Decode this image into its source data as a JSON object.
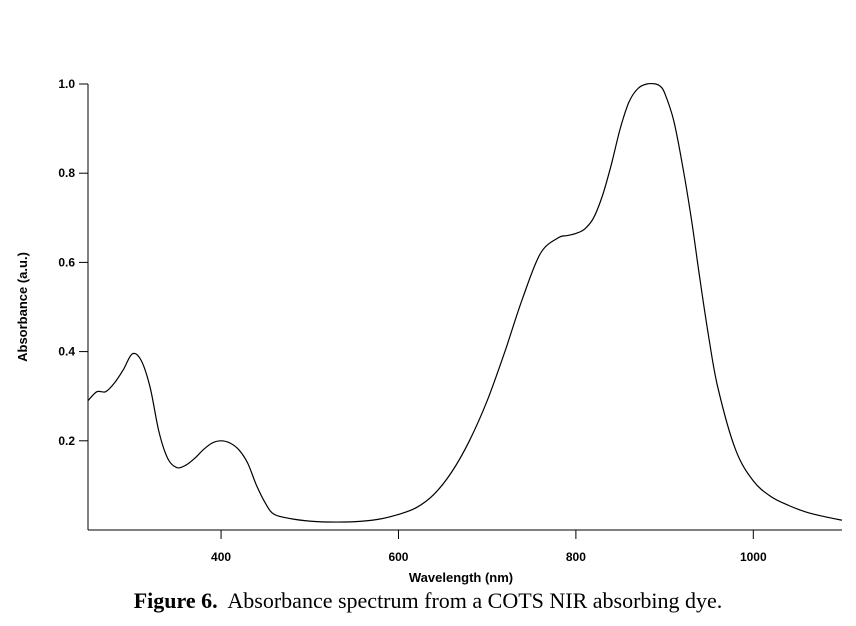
{
  "caption": {
    "label": "Figure 6.",
    "text": "Absorbance spectrum from a COTS NIR absorbing dye."
  },
  "chart_data": {
    "type": "line",
    "title": "",
    "xlabel": "Wavelength (nm)",
    "ylabel": "Absorbance (a.u.)",
    "xlim": [
      250,
      1100
    ],
    "ylim": [
      0,
      1.0
    ],
    "xticks": [
      400,
      600,
      800,
      1000
    ],
    "yticks": [
      0.2,
      0.4,
      0.6,
      0.8,
      1.0
    ],
    "xtick_labels": [
      "400",
      "600",
      "800",
      "1000"
    ],
    "ytick_labels": [
      "0.2",
      "0.4",
      "0.6",
      "0.8",
      "1.0"
    ],
    "grid": false,
    "legend": "none",
    "line_color": "#000000",
    "series": [
      {
        "x": [
          250,
          260,
          270,
          280,
          290,
          300,
          310,
          320,
          330,
          340,
          350,
          360,
          370,
          380,
          390,
          400,
          410,
          420,
          430,
          440,
          450,
          460,
          480,
          500,
          520,
          540,
          560,
          580,
          600,
          620,
          640,
          660,
          680,
          700,
          720,
          740,
          760,
          780,
          790,
          800,
          810,
          820,
          830,
          840,
          850,
          860,
          870,
          880,
          890,
          895,
          900,
          910,
          920,
          930,
          940,
          950,
          960,
          980,
          1000,
          1020,
          1040,
          1060,
          1080,
          1100
        ],
        "y": [
          0.29,
          0.31,
          0.31,
          0.33,
          0.36,
          0.395,
          0.38,
          0.32,
          0.22,
          0.16,
          0.14,
          0.145,
          0.16,
          0.18,
          0.195,
          0.2,
          0.195,
          0.18,
          0.15,
          0.1,
          0.06,
          0.035,
          0.025,
          0.02,
          0.018,
          0.018,
          0.02,
          0.025,
          0.035,
          0.05,
          0.08,
          0.13,
          0.2,
          0.29,
          0.4,
          0.52,
          0.62,
          0.655,
          0.66,
          0.665,
          0.675,
          0.7,
          0.75,
          0.82,
          0.9,
          0.96,
          0.99,
          1.0,
          1.0,
          0.995,
          0.98,
          0.92,
          0.82,
          0.7,
          0.56,
          0.43,
          0.32,
          0.18,
          0.11,
          0.075,
          0.055,
          0.04,
          0.03,
          0.022
        ]
      }
    ]
  }
}
